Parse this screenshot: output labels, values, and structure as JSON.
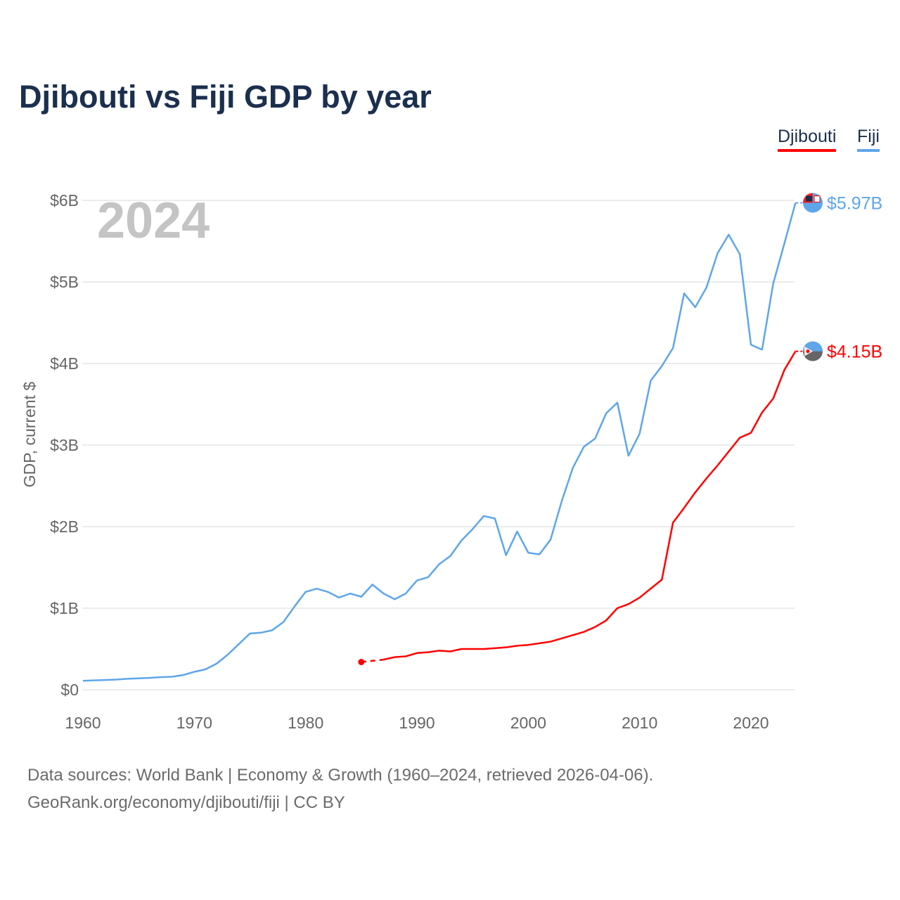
{
  "chart_data": {
    "type": "line",
    "title": "Djibouti vs Fiji GDP by year",
    "xlabel": "",
    "ylabel": "GDP, current $",
    "xlim": [
      1960,
      2024
    ],
    "ylim": [
      0,
      6
    ],
    "y_unit": "billion USD",
    "x_ticks": [
      1960,
      1970,
      1980,
      1990,
      2000,
      2010,
      2020
    ],
    "x_tick_labels": [
      "1960",
      "1970",
      "1980",
      "1990",
      "2000",
      "2010",
      "2020"
    ],
    "y_ticks": [
      0,
      1,
      2,
      3,
      4,
      5,
      6
    ],
    "y_tick_labels": [
      "$0",
      "$1B",
      "$2B",
      "$3B",
      "$4B",
      "$5B",
      "$6B"
    ],
    "grid": true,
    "legend_position": "top-right",
    "year_watermark": "2024",
    "series": [
      {
        "name": "Djibouti",
        "color": "#ff0000",
        "end_label": "$4.15B",
        "x": [
          1985,
          1986,
          1987,
          1988,
          1989,
          1990,
          1991,
          1992,
          1993,
          1994,
          1995,
          1996,
          1997,
          1998,
          1999,
          2000,
          2001,
          2002,
          2003,
          2004,
          2005,
          2006,
          2007,
          2008,
          2009,
          2010,
          2011,
          2012,
          2013,
          2014,
          2015,
          2016,
          2017,
          2018,
          2019,
          2020,
          2021,
          2022,
          2023,
          2024
        ],
        "values": [
          0.34,
          null,
          0.37,
          0.4,
          0.41,
          0.45,
          0.46,
          0.48,
          0.47,
          0.5,
          0.5,
          0.5,
          0.51,
          0.52,
          0.54,
          0.55,
          0.57,
          0.59,
          0.63,
          0.67,
          0.71,
          0.77,
          0.85,
          1.0,
          1.05,
          1.13,
          1.24,
          1.35,
          2.05,
          2.23,
          2.42,
          2.59,
          2.75,
          2.92,
          3.09,
          3.15,
          3.4,
          3.57,
          3.92,
          4.15
        ]
      },
      {
        "name": "Fiji",
        "color": "#5ea6ea",
        "end_label": "$5.97B",
        "x": [
          1960,
          1961,
          1962,
          1963,
          1964,
          1965,
          1966,
          1967,
          1968,
          1969,
          1970,
          1971,
          1972,
          1973,
          1974,
          1975,
          1976,
          1977,
          1978,
          1979,
          1980,
          1981,
          1982,
          1983,
          1984,
          1985,
          1986,
          1987,
          1988,
          1989,
          1990,
          1991,
          1992,
          1993,
          1994,
          1995,
          1996,
          1997,
          1998,
          1999,
          2000,
          2001,
          2002,
          2003,
          2004,
          2005,
          2006,
          2007,
          2008,
          2009,
          2010,
          2011,
          2012,
          2013,
          2014,
          2015,
          2016,
          2017,
          2018,
          2019,
          2020,
          2021,
          2022,
          2023,
          2024
        ],
        "values": [
          0.11,
          0.115,
          0.12,
          0.125,
          0.135,
          0.14,
          0.145,
          0.155,
          0.16,
          0.18,
          0.22,
          0.25,
          0.32,
          0.43,
          0.56,
          0.69,
          0.7,
          0.73,
          0.83,
          1.02,
          1.2,
          1.24,
          1.2,
          1.13,
          1.18,
          1.14,
          1.29,
          1.18,
          1.11,
          1.18,
          1.34,
          1.38,
          1.54,
          1.64,
          1.83,
          1.97,
          2.13,
          2.1,
          1.65,
          1.94,
          1.68,
          1.66,
          1.84,
          2.31,
          2.72,
          2.98,
          3.08,
          3.39,
          3.52,
          2.87,
          3.14,
          3.79,
          3.97,
          4.19,
          4.86,
          4.69,
          4.93,
          5.35,
          5.58,
          5.34,
          4.23,
          4.17,
          4.98,
          5.47,
          5.97
        ]
      }
    ]
  },
  "legend": {
    "djibouti": "Djibouti",
    "fiji": "Fiji"
  },
  "footer": {
    "line1": "Data sources: World Bank | Economy & Growth (1960–2024, retrieved 2026-04-06).",
    "line2": "GeoRank.org/economy/djibouti/fiji | CC BY"
  }
}
